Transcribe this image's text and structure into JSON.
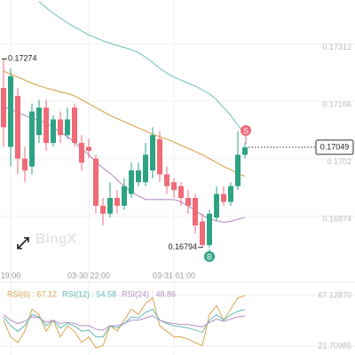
{
  "chart_data": [
    {
      "type": "candlestick",
      "categories": [
        null,
        "19:00",
        null,
        null,
        null,
        null,
        null,
        null,
        null,
        null,
        null,
        null,
        "03-30 22:00",
        null,
        null,
        null,
        null,
        null,
        null,
        null,
        null,
        null,
        null,
        null,
        "03-31 01:00",
        null,
        null,
        null,
        null,
        null,
        null,
        null,
        null,
        null,
        null
      ],
      "open": [
        0.172,
        0.1705,
        0.1718,
        0.1702,
        0.17,
        0.1708,
        0.1715,
        0.1706,
        0.1712,
        0.1708,
        0.1715,
        0.1706,
        0.1705,
        0.1702,
        0.169,
        0.1688,
        0.1692,
        0.169,
        0.1693,
        0.1696,
        0.1696,
        0.1699,
        0.1707,
        0.1698,
        0.1696,
        0.1695,
        0.1692,
        0.1692,
        0.1686,
        0.168,
        0.1687,
        0.1693,
        0.1691,
        0.1695,
        0.1703
      ],
      "high": [
        0.17274,
        0.1725,
        0.172,
        0.1705,
        0.1716,
        0.1717,
        0.1717,
        0.1713,
        0.1714,
        0.1715,
        0.1716,
        0.1708,
        0.1707,
        0.1703,
        0.1692,
        0.1696,
        0.1694,
        0.1697,
        0.1701,
        0.1701,
        0.1706,
        0.171,
        0.1709,
        0.17,
        0.1697,
        0.1696,
        0.1694,
        0.1693,
        0.1688,
        0.1689,
        0.1695,
        0.1695,
        0.1696,
        0.1709,
        0.1706
      ],
      "low": [
        0.1705,
        0.17,
        0.1698,
        0.1696,
        0.1698,
        0.1706,
        0.1704,
        0.1705,
        0.1706,
        0.1707,
        0.1705,
        0.1699,
        0.1702,
        0.1688,
        0.1685,
        0.1687,
        0.1688,
        0.1689,
        0.1692,
        0.1695,
        0.1695,
        0.1697,
        0.1696,
        0.1693,
        0.1692,
        0.169,
        0.1688,
        0.1683,
        0.16794,
        0.16794,
        0.1686,
        0.169,
        0.169,
        0.1694,
        0.1702
      ],
      "close": [
        0.171,
        0.1723,
        0.1702,
        0.1699,
        0.1714,
        0.1715,
        0.1706,
        0.1712,
        0.1708,
        0.1712,
        0.1706,
        0.1701,
        0.1704,
        0.169,
        0.1688,
        0.1692,
        0.169,
        0.1695,
        0.1699,
        0.1699,
        0.1703,
        0.1708,
        0.1698,
        0.1695,
        0.1694,
        0.1692,
        0.169,
        0.1685,
        0.168,
        0.1688,
        0.1693,
        0.1691,
        0.1695,
        0.1703,
        0.17049
      ],
      "up_color": "#2ea383",
      "down_color": "#ee6b77",
      "series": [
        {
          "color": "#7fc3c0",
          "values": [
            null,
            null,
            null,
            null,
            null,
            0.1742,
            0.17405,
            0.1739,
            0.17378,
            0.17366,
            0.17355,
            0.17345,
            0.17335,
            0.17328,
            0.1732,
            0.17314,
            0.17308,
            0.17303,
            0.17298,
            0.1729,
            0.17278,
            0.17265,
            0.1725,
            0.17238,
            0.17228,
            0.1722,
            0.17212,
            0.17205,
            0.17195,
            0.17185,
            0.1717,
            0.1715,
            0.1713,
            0.17105,
            0.17085
          ]
        },
        {
          "color": "#d9a54f",
          "values": [
            0.17243,
            0.17235,
            0.17228,
            0.1722,
            0.17212,
            0.17206,
            0.172,
            0.17195,
            0.1719,
            0.17186,
            0.1718,
            0.1717,
            0.1716,
            0.1715,
            0.1714,
            0.1713,
            0.17122,
            0.17114,
            0.17106,
            0.17098,
            0.1709,
            0.17082,
            0.17076,
            0.1707,
            0.17062,
            0.17054,
            0.17046,
            0.17038,
            0.1703,
            0.1702,
            0.1701,
            0.17,
            0.16992,
            0.16982,
            0.16975
          ]
        },
        {
          "color": "#b38fc4",
          "values": [
            0.17153,
            0.17145,
            0.17138,
            0.1713,
            0.17122,
            0.17119,
            0.1711,
            0.171,
            0.17088,
            0.17076,
            0.17062,
            0.17045,
            0.1703,
            0.17012,
            0.16996,
            0.16983,
            0.16966,
            0.1695,
            0.16935,
            0.16925,
            0.16916,
            0.16916,
            0.16916,
            0.16916,
            0.16916,
            0.1691,
            0.169,
            0.16888,
            0.16876,
            0.16866,
            0.16862,
            0.16858,
            0.1686,
            0.16866,
            0.1687
          ]
        }
      ],
      "ylim": [
        0.16746,
        0.17424
      ],
      "yticks": [
        0.17312,
        0.17166,
        0.1702,
        0.16874
      ],
      "high_label": 0.17274,
      "low_label": 0.16794,
      "last_price": 0.17049,
      "sell_marker": "S",
      "buy_marker": "B",
      "watermark": "BingX"
    },
    {
      "type": "line",
      "series": [
        {
          "name": "RSI(6) : 67.12",
          "color": "#d9a54f",
          "values": [
            45,
            30,
            25,
            35,
            55,
            50,
            35,
            45,
            30,
            40,
            35,
            25,
            30,
            20,
            22,
            40,
            35,
            45,
            55,
            50,
            60,
            65,
            40,
            35,
            30,
            30,
            28,
            25,
            22,
            50,
            58,
            45,
            55,
            65,
            67.12
          ]
        },
        {
          "name": "RSI(12) : 54.58",
          "color": "#5fb8b3",
          "values": [
            48,
            40,
            35,
            40,
            50,
            48,
            40,
            45,
            38,
            42,
            40,
            35,
            36,
            30,
            30,
            40,
            38,
            42,
            48,
            47,
            52,
            55,
            45,
            42,
            40,
            39,
            38,
            36,
            34,
            45,
            50,
            45,
            50,
            53,
            54.58
          ]
        },
        {
          "name": "RSI(24) : 48.86",
          "color": "#b38fc4",
          "values": [
            50,
            45,
            42,
            44,
            48,
            47,
            43,
            45,
            42,
            43,
            42,
            40,
            40,
            37,
            36,
            40,
            40,
            42,
            45,
            45,
            47,
            49,
            45,
            43,
            42,
            41,
            41,
            40,
            39,
            43,
            46,
            44,
            46,
            48,
            48.86
          ]
        }
      ],
      "ylim": [
        13.74,
        77.49
      ],
      "yticks": [
        {
          "value": 67.1287,
          "label": "67.12870"
        },
        {
          "value": 21.70985,
          "label": "21.70985"
        }
      ]
    }
  ]
}
